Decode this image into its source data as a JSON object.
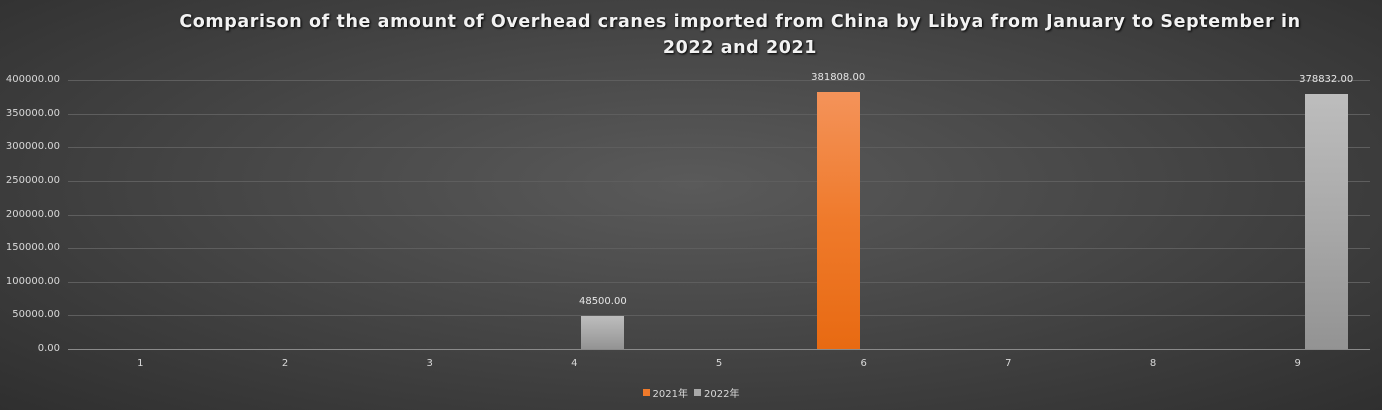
{
  "chart_data": {
    "type": "bar",
    "title": "Comparison of the amount of Overhead cranes imported from China by Libya from January to September in 2022 and 2021",
    "title_line1": "Comparison of the amount of Overhead cranes imported from China by Libya from January to September in",
    "title_line2": "2022 and 2021",
    "xlabel": "",
    "ylabel": "",
    "categories": [
      "1",
      "2",
      "3",
      "4",
      "5",
      "6",
      "7",
      "8",
      "9"
    ],
    "series": [
      {
        "name": "2021年",
        "color": "#ef7a2b",
        "values": [
          0,
          0,
          0,
          0,
          0,
          381808,
          0,
          0,
          0
        ]
      },
      {
        "name": "2022年",
        "color": "#a9a9a9",
        "values": [
          0,
          0,
          0,
          48500,
          0,
          0,
          0,
          0,
          378832
        ]
      }
    ],
    "data_labels": [
      {
        "category": "4",
        "series": "2022年",
        "text": "48500.00"
      },
      {
        "category": "6",
        "series": "2021年",
        "text": "381808.00"
      },
      {
        "category": "9",
        "series": "2022年",
        "text": "378832.00"
      }
    ],
    "ylim": [
      0,
      400000
    ],
    "yticks": [
      "0.00",
      "50000.00",
      "100000.00",
      "150000.00",
      "200000.00",
      "250000.00",
      "300000.00",
      "350000.00",
      "400000.00"
    ],
    "grid": true,
    "legend_position": "bottom"
  },
  "legend": {
    "s2021": "2021年",
    "s2022": "2022年"
  }
}
